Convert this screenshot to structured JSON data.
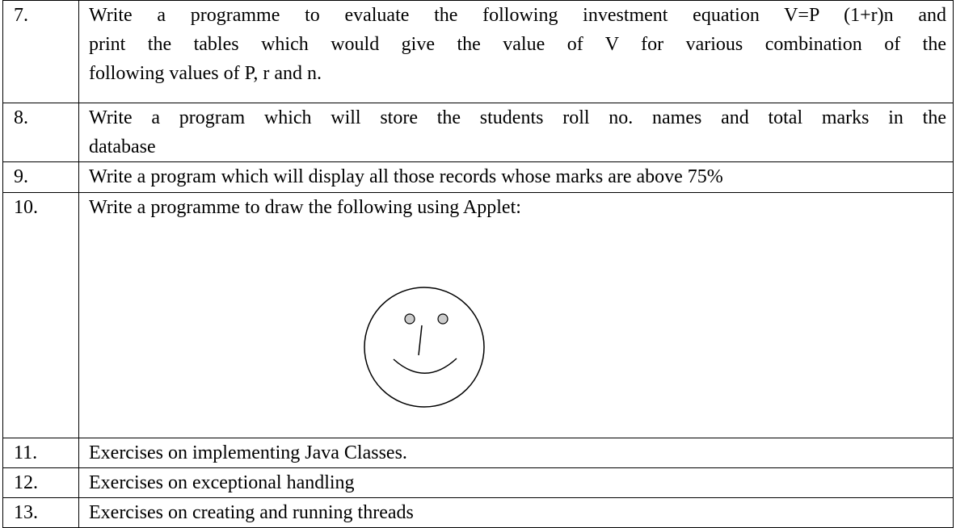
{
  "table": {
    "rows": [
      {
        "number": "7.",
        "lines": [
          "Write a programme to evaluate the following investment equation V=P (1+r)n and",
          "print the tables which would give the value of V for various combination of the",
          "following values of P, r and n."
        ]
      },
      {
        "number": "8.",
        "lines": [
          "Write a program which will store the students roll no. names and total marks in the",
          "database"
        ]
      },
      {
        "number": "9.",
        "lines": [
          "Write a program which will display all those records whose marks are above 75%"
        ]
      },
      {
        "number": "10.",
        "lines": [
          "Write a programme to draw the following using Applet:"
        ]
      },
      {
        "number": "11.",
        "lines": [
          "Exercises on implementing Java Classes."
        ]
      },
      {
        "number": "12.",
        "lines": [
          "Exercises on exceptional handling"
        ]
      },
      {
        "number": "13.",
        "lines": [
          "Exercises on creating and running threads"
        ]
      }
    ]
  }
}
